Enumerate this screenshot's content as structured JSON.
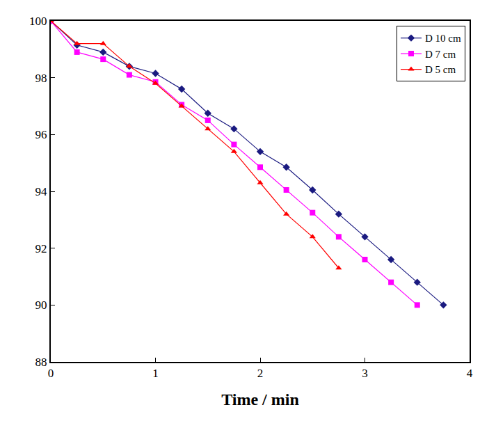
{
  "chart_data": {
    "type": "line",
    "x_label": "Time / min",
    "x": [
      0,
      0.25,
      0.5,
      0.75,
      1,
      1.25,
      1.5,
      1.75,
      2,
      2.25,
      2.5,
      2.75,
      3,
      3.25,
      3.5,
      3.75
    ],
    "series": [
      {
        "name": "D 10 cm",
        "color": "#1a1a80",
        "marker": "diamond",
        "values": [
          100,
          99.15,
          98.9,
          98.4,
          98.15,
          97.6,
          96.75,
          96.2,
          95.4,
          94.85,
          94.05,
          93.2,
          92.4,
          91.6,
          90.8,
          90.0
        ]
      },
      {
        "name": "D 7 cm",
        "color": "#ff00ff",
        "marker": "square",
        "values": [
          100,
          98.9,
          98.65,
          98.1,
          97.85,
          97.05,
          96.5,
          95.65,
          94.85,
          94.05,
          93.25,
          92.4,
          91.6,
          90.8,
          90.0,
          null
        ]
      },
      {
        "name": "D 5 cm",
        "color": "#ff0000",
        "marker": "triangle",
        "values": [
          100,
          99.2,
          99.2,
          98.4,
          97.8,
          97.0,
          96.2,
          95.4,
          94.3,
          93.2,
          92.4,
          91.3,
          null,
          null,
          null,
          null
        ]
      }
    ],
    "xlim": [
      0,
      4
    ],
    "xticks": [
      0,
      1,
      2,
      3,
      4
    ],
    "ylim": [
      88,
      100
    ],
    "yticks": [
      88,
      90,
      92,
      94,
      96,
      98,
      100
    ],
    "grid": false,
    "legend": "upper right"
  }
}
